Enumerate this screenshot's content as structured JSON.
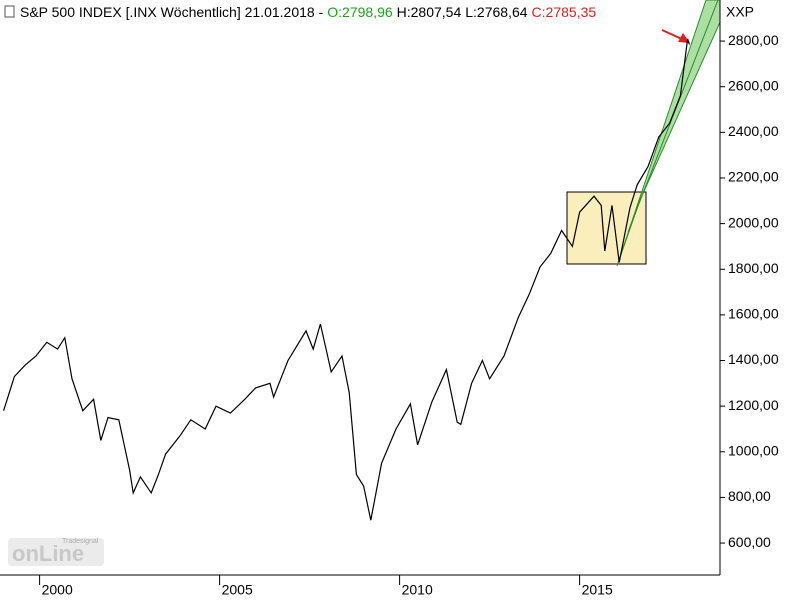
{
  "chart_data": {
    "type": "line",
    "title": "S&P 500 INDEX [.INX  Wöchentlich] 21.01.2018 -",
    "header_items": [
      {
        "text": "O:2798,96",
        "color": "#1aa31a"
      },
      {
        "text": "H:2807,54",
        "color": "#000000"
      },
      {
        "text": "L:2768,64",
        "color": "#000000"
      },
      {
        "text": "C:2785,35",
        "color": "#e02020"
      }
    ],
    "axis_name": "XXP",
    "logo": "onLine",
    "logo_small": "Tradesignal",
    "color": "#000000",
    "x": [
      1999.0,
      1999.3,
      1999.6,
      1999.9,
      2000.2,
      2000.5,
      2000.7,
      2000.9,
      2001.2,
      2001.5,
      2001.7,
      2001.9,
      2002.2,
      2002.5,
      2002.6,
      2002.8,
      2003.1,
      2003.3,
      2003.5,
      2003.9,
      2004.2,
      2004.6,
      2004.9,
      2005.3,
      2005.7,
      2006.0,
      2006.4,
      2006.5,
      2006.9,
      2007.4,
      2007.6,
      2007.8,
      2008.1,
      2008.4,
      2008.6,
      2008.8,
      2009.0,
      2009.2,
      2009.5,
      2009.9,
      2010.3,
      2010.5,
      2010.9,
      2011.3,
      2011.6,
      2011.7,
      2012.0,
      2012.3,
      2012.5,
      2012.9,
      2013.3,
      2013.6,
      2013.9,
      2014.2,
      2014.5,
      2014.8,
      2015.0,
      2015.4,
      2015.6,
      2015.7,
      2015.9,
      2016.1,
      2016.4,
      2016.6,
      2016.9,
      2017.2,
      2017.5,
      2017.8,
      2018.0,
      2018.05
    ],
    "values": [
      1180,
      1330,
      1380,
      1420,
      1480,
      1450,
      1500,
      1320,
      1180,
      1230,
      1050,
      1150,
      1140,
      920,
      820,
      890,
      820,
      900,
      990,
      1070,
      1140,
      1100,
      1200,
      1170,
      1230,
      1280,
      1300,
      1240,
      1400,
      1530,
      1450,
      1560,
      1350,
      1420,
      1260,
      900,
      850,
      700,
      950,
      1100,
      1210,
      1030,
      1220,
      1360,
      1130,
      1120,
      1300,
      1400,
      1320,
      1420,
      1590,
      1690,
      1810,
      1870,
      1970,
      1900,
      2050,
      2120,
      2080,
      1880,
      2080,
      1830,
      2070,
      2170,
      2250,
      2380,
      2440,
      2560,
      2810,
      2785
    ],
    "xlim": [
      1998.9,
      2018.9
    ],
    "xticks": [
      2000,
      2005,
      2010,
      2015
    ],
    "ylim": [
      460,
      2980
    ],
    "yticks": [
      {
        "value": 600,
        "label": "600,00"
      },
      {
        "value": 800,
        "label": "800,00"
      },
      {
        "value": 1000,
        "label": "1000,00"
      },
      {
        "value": 1200,
        "label": "1200,00"
      },
      {
        "value": 1400,
        "label": "1400,00"
      },
      {
        "value": 1600,
        "label": "1600,00"
      },
      {
        "value": 1800,
        "label": "1800,00"
      },
      {
        "value": 2000,
        "label": "2000,00"
      },
      {
        "value": 2200,
        "label": "2200,00"
      },
      {
        "value": 2400,
        "label": "2400,00"
      },
      {
        "value": 2600,
        "label": "2600,00"
      },
      {
        "value": 2800,
        "label": "2800,00"
      }
    ]
  }
}
